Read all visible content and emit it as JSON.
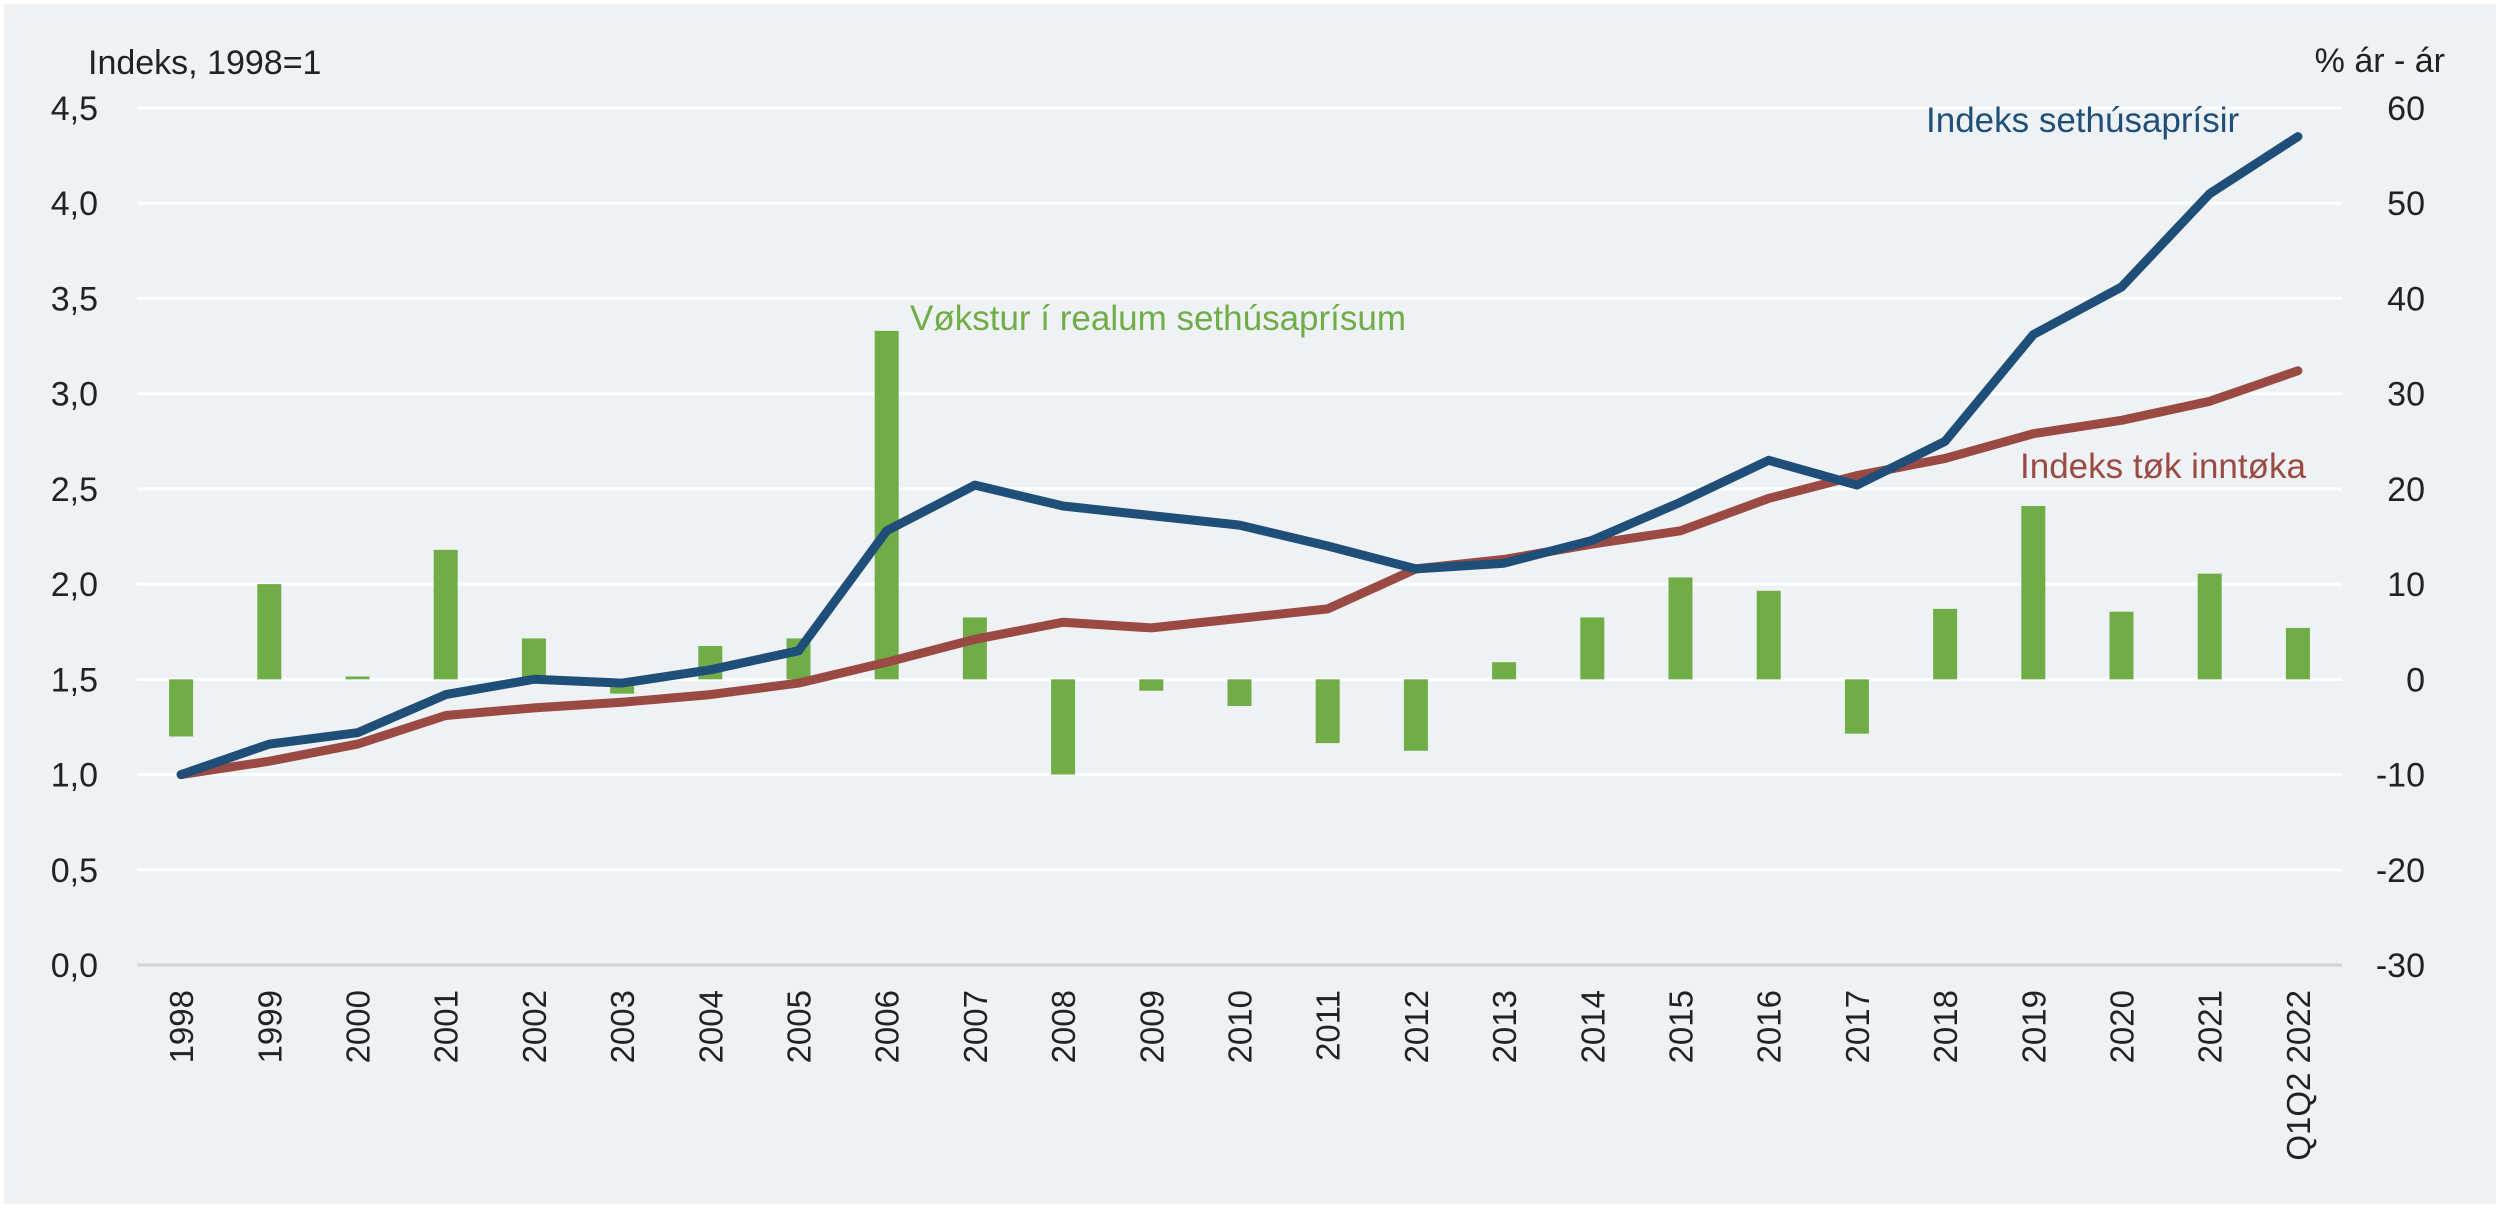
{
  "chart_data": {
    "type": "bar+line",
    "title": "",
    "y_left": {
      "label": "Indeks, 1998=1",
      "ylim": [
        0,
        4.5
      ],
      "ticks": [
        "0,0",
        "0,5",
        "1,0",
        "1,5",
        "2,0",
        "2,5",
        "3,0",
        "3,5",
        "4,0",
        "4,5"
      ]
    },
    "y_right": {
      "label": "% ár - ár",
      "ylim": [
        -30,
        60
      ],
      "ticks": [
        "-30",
        "-20",
        "-10",
        "0",
        "10",
        "20",
        "30",
        "40",
        "50",
        "60"
      ]
    },
    "grid": true,
    "categories": [
      "1998",
      "1999",
      "2000",
      "2001",
      "2002",
      "2003",
      "2004",
      "2005",
      "2006",
      "2007",
      "2008",
      "2009",
      "2010",
      "2011",
      "2012",
      "2013",
      "2014",
      "2015",
      "2016",
      "2017",
      "2018",
      "2019",
      "2020",
      "2021",
      "Q1Q2 2022"
    ],
    "series": [
      {
        "name": "Vøkstur í realum sethúsaprísum",
        "type": "bar",
        "axis": "right",
        "color": "#70ad47",
        "values": [
          -6,
          10,
          0.3,
          13.6,
          4.3,
          -1.5,
          3.5,
          4.3,
          36.6,
          6.5,
          -10,
          -1.2,
          -2.8,
          -6.7,
          -7.5,
          1.8,
          6.5,
          10.7,
          9.3,
          -5.7,
          7.4,
          18.2,
          7.1,
          11.1,
          5.4
        ]
      },
      {
        "name": "Indeks sethúsaprísir",
        "type": "line",
        "axis": "left",
        "color": "#1f4e79",
        "values": [
          1.0,
          1.16,
          1.22,
          1.42,
          1.5,
          1.48,
          1.55,
          1.65,
          2.28,
          2.52,
          2.41,
          2.36,
          2.31,
          2.2,
          2.08,
          2.11,
          2.23,
          2.43,
          2.65,
          2.52,
          2.75,
          3.31,
          3.56,
          4.05,
          4.35
        ]
      },
      {
        "name": "Indeks tøk inntøka",
        "type": "line",
        "axis": "left",
        "color": "#9b4a43",
        "values": [
          1.0,
          1.07,
          1.16,
          1.31,
          1.35,
          1.38,
          1.42,
          1.48,
          1.59,
          1.71,
          1.8,
          1.77,
          1.82,
          1.87,
          2.08,
          2.13,
          2.21,
          2.28,
          2.45,
          2.57,
          2.66,
          2.79,
          2.86,
          2.96,
          3.12
        ]
      }
    ],
    "colors": {
      "background": "#eef2f5",
      "gridline": "#ffffff",
      "axis_text": "#222222",
      "bars": "#70ad47",
      "house_price_line": "#1f4e79",
      "income_line": "#9b4a43"
    }
  }
}
